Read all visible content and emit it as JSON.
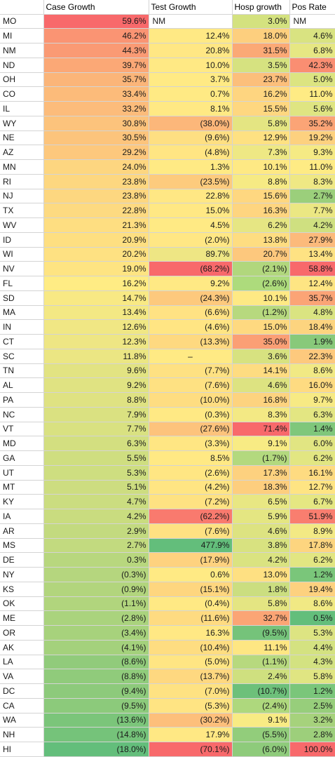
{
  "headers": [
    "",
    "Case Growth",
    "Test Growth",
    "Hosp growth",
    "Pos Rate"
  ],
  "rows": [
    {
      "state": "MO",
      "case": "59.6%",
      "cc": "#f8696b",
      "test": "NM",
      "tc": "#ffffff",
      "hosp": "3.0%",
      "hc": "#d4e27f",
      "pos": "NM",
      "pc": "#ffffff"
    },
    {
      "state": "MI",
      "case": "46.2%",
      "cc": "#fa9473",
      "test": "12.4%",
      "tc": "#ffe984",
      "hosp": "18.0%",
      "hc": "#fdcf7e",
      "pos": "4.6%",
      "pc": "#d9e381"
    },
    {
      "state": "NM",
      "case": "44.3%",
      "cc": "#fa9a74",
      "test": "20.8%",
      "tc": "#ffe784",
      "hosp": "31.5%",
      "hc": "#fba976",
      "pos": "6.8%",
      "pc": "#e6e783"
    },
    {
      "state": "ND",
      "case": "39.7%",
      "cc": "#fba876",
      "test": "10.0%",
      "tc": "#ffe984",
      "hosp": "3.5%",
      "hc": "#d6e280",
      "pos": "42.3%",
      "pc": "#fa8e72"
    },
    {
      "state": "OH",
      "case": "35.7%",
      "cc": "#fbb579",
      "test": "3.7%",
      "tc": "#ffea84",
      "hosp": "23.7%",
      "hc": "#fcbf7b",
      "pos": "5.0%",
      "pc": "#dce481"
    },
    {
      "state": "CO",
      "case": "33.4%",
      "cc": "#fcbb7a",
      "test": "0.7%",
      "tc": "#ffea84",
      "hosp": "16.2%",
      "hc": "#fed580",
      "pos": "11.0%",
      "pc": "#feeb84"
    },
    {
      "state": "IL",
      "case": "33.2%",
      "cc": "#fcbc7b",
      "test": "8.1%",
      "tc": "#ffe984",
      "hosp": "15.5%",
      "hc": "#fed780",
      "pos": "5.6%",
      "pc": "#dfe582"
    },
    {
      "state": "WY",
      "case": "30.8%",
      "cc": "#fcc37c",
      "test": "(38.0%)",
      "tc": "#fcb77a",
      "hosp": "5.8%",
      "hc": "#e4e582",
      "pos": "35.2%",
      "pc": "#fba476"
    },
    {
      "state": "NE",
      "case": "30.5%",
      "cc": "#fcc47c",
      "test": "(9.6%)",
      "tc": "#fedf82",
      "hosp": "12.9%",
      "hc": "#fee182",
      "pos": "19.2%",
      "pc": "#fdd17f"
    },
    {
      "state": "AZ",
      "case": "29.2%",
      "cc": "#fdc87d",
      "test": "(4.8%)",
      "tc": "#ffe583",
      "hosp": "7.3%",
      "hc": "#eee884",
      "pos": "9.3%",
      "pc": "#f5ea84"
    },
    {
      "state": "MN",
      "case": "24.0%",
      "cc": "#fdd680",
      "test": "1.3%",
      "tc": "#ffea84",
      "hosp": "10.1%",
      "hc": "#fee984",
      "pos": "11.0%",
      "pc": "#feeb84"
    },
    {
      "state": "RI",
      "case": "23.8%",
      "cc": "#fdd780",
      "test": "(23.5%)",
      "tc": "#fdcb7d",
      "hosp": "8.8%",
      "hc": "#f6ea84",
      "pos": "8.3%",
      "pc": "#efe884"
    },
    {
      "state": "NJ",
      "case": "23.8%",
      "cc": "#fdd780",
      "test": "22.8%",
      "tc": "#ffe784",
      "hosp": "15.6%",
      "hc": "#fed780",
      "pos": "2.7%",
      "pc": "#9bcf7b"
    },
    {
      "state": "TX",
      "case": "22.8%",
      "cc": "#fdda81",
      "test": "15.0%",
      "tc": "#ffe884",
      "hosp": "16.3%",
      "hc": "#fed580",
      "pos": "7.7%",
      "pc": "#ebe783"
    },
    {
      "state": "WV",
      "case": "21.3%",
      "cc": "#fede81",
      "test": "4.5%",
      "tc": "#ffea84",
      "hosp": "6.2%",
      "hc": "#e6e683",
      "pos": "4.2%",
      "pc": "#cfe080"
    },
    {
      "state": "ID",
      "case": "20.9%",
      "cc": "#fedf81",
      "test": "(2.0%)",
      "tc": "#ffe784",
      "hosp": "13.8%",
      "hc": "#fedd81",
      "pos": "27.9%",
      "pc": "#fcba7b"
    },
    {
      "state": "WI",
      "case": "20.2%",
      "cc": "#fee182",
      "test": "89.7%",
      "tc": "#eee684",
      "hosp": "20.7%",
      "hc": "#fdc87d",
      "pos": "13.4%",
      "pc": "#fee283"
    },
    {
      "state": "NV",
      "case": "19.0%",
      "cc": "#fee482",
      "test": "(68.2%)",
      "tc": "#f8696b",
      "hosp": "(2.1%)",
      "hc": "#b1d77d",
      "pos": "58.8%",
      "pc": "#f8696b"
    },
    {
      "state": "FL",
      "case": "16.2%",
      "cc": "#ffec84",
      "test": "9.2%",
      "tc": "#ffe984",
      "hosp": "(2.6%)",
      "hc": "#addb7c",
      "pos": "12.4%",
      "pc": "#fee583"
    },
    {
      "state": "SD",
      "case": "14.7%",
      "cc": "#f8e984",
      "test": "(24.3%)",
      "tc": "#fdc97d",
      "hosp": "10.1%",
      "hc": "#fee984",
      "pos": "35.7%",
      "pc": "#fba476"
    },
    {
      "state": "MA",
      "case": "13.4%",
      "cc": "#f3e884",
      "test": "(6.6%)",
      "tc": "#ffe283",
      "hosp": "(1.2%)",
      "hc": "#b7d97e",
      "pos": "4.8%",
      "pc": "#dae481"
    },
    {
      "state": "IN",
      "case": "12.6%",
      "cc": "#f0e784",
      "test": "(4.6%)",
      "tc": "#ffe583",
      "hosp": "15.0%",
      "hc": "#fed980",
      "pos": "18.4%",
      "pc": "#fdd47f"
    },
    {
      "state": "CT",
      "case": "12.3%",
      "cc": "#eee684",
      "test": "(13.3%)",
      "tc": "#fed980",
      "hosp": "35.0%",
      "hc": "#fb9f75",
      "pos": "1.9%",
      "pc": "#88c97a"
    },
    {
      "state": "SC",
      "case": "11.8%",
      "cc": "#ebe683",
      "test": "–",
      "tc": "#ffea84",
      "hosp": "3.6%",
      "hc": "#d7e280",
      "pos": "22.3%",
      "pc": "#fdc97d"
    },
    {
      "state": "TN",
      "case": "9.6%",
      "cc": "#e2e382",
      "test": "(7.7%)",
      "tc": "#fee182",
      "hosp": "14.1%",
      "hc": "#fedc81",
      "pos": "8.6%",
      "pc": "#f1e984"
    },
    {
      "state": "AL",
      "case": "9.2%",
      "cc": "#e0e382",
      "test": "(7.6%)",
      "tc": "#fee182",
      "hosp": "4.6%",
      "hc": "#dde381",
      "pos": "16.0%",
      "pc": "#fedb81"
    },
    {
      "state": "PA",
      "case": "8.8%",
      "cc": "#dfe282",
      "test": "(10.0%)",
      "tc": "#fedd81",
      "hosp": "16.8%",
      "hc": "#fdd37f",
      "pos": "9.7%",
      "pc": "#f7ea84"
    },
    {
      "state": "NC",
      "case": "7.9%",
      "cc": "#dae181",
      "test": "(0.3%)",
      "tc": "#ffe984",
      "hosp": "8.3%",
      "hc": "#f3e984",
      "pos": "6.3%",
      "pc": "#e3e682"
    },
    {
      "state": "VT",
      "case": "7.7%",
      "cc": "#d9e181",
      "test": "(27.6%)",
      "tc": "#fdc37c",
      "hosp": "71.4%",
      "hc": "#f8696b",
      "pos": "1.4%",
      "pc": "#7fc77b"
    },
    {
      "state": "MD",
      "case": "6.3%",
      "cc": "#d3df80",
      "test": "(3.3%)",
      "tc": "#ffe683",
      "hosp": "9.1%",
      "hc": "#f8eb84",
      "pos": "6.0%",
      "pc": "#e1e582"
    },
    {
      "state": "GA",
      "case": "5.5%",
      "cc": "#cfde80",
      "test": "8.5%",
      "tc": "#ffe984",
      "hosp": "(1.7%)",
      "hc": "#b3d97e",
      "pos": "6.2%",
      "pc": "#e2e682"
    },
    {
      "state": "UT",
      "case": "5.3%",
      "cc": "#cede80",
      "test": "(2.6%)",
      "tc": "#ffe683",
      "hosp": "17.3%",
      "hc": "#fdd17f",
      "pos": "16.1%",
      "pc": "#fedb81"
    },
    {
      "state": "MT",
      "case": "5.1%",
      "cc": "#cddd80",
      "test": "(4.2%)",
      "tc": "#ffe583",
      "hosp": "18.3%",
      "hc": "#fdce7e",
      "pos": "12.7%",
      "pc": "#fee483"
    },
    {
      "state": "KY",
      "case": "4.7%",
      "cc": "#cbdd80",
      "test": "(7.2%)",
      "tc": "#fee282",
      "hosp": "6.5%",
      "hc": "#e8e783",
      "pos": "6.7%",
      "pc": "#e5e782"
    },
    {
      "state": "IA",
      "case": "4.2%",
      "cc": "#c9dc7f",
      "test": "(62.2%)",
      "tc": "#f97a6e",
      "hosp": "5.9%",
      "hc": "#e4e682",
      "pos": "51.9%",
      "pc": "#f97e6f"
    },
    {
      "state": "AR",
      "case": "2.9%",
      "cc": "#c3da7f",
      "test": "(7.6%)",
      "tc": "#fee182",
      "hosp": "4.6%",
      "hc": "#dde381",
      "pos": "8.9%",
      "pc": "#f3e984"
    },
    {
      "state": "MS",
      "case": "2.7%",
      "cc": "#c2da7f",
      "test": "477.9%",
      "tc": "#63be7b",
      "hosp": "3.8%",
      "hc": "#d8e280",
      "pos": "17.8%",
      "pc": "#fdd57f"
    },
    {
      "state": "DE",
      "case": "0.3%",
      "cc": "#b8d77e",
      "test": "(17.9%)",
      "tc": "#fed27f",
      "hosp": "4.2%",
      "hc": "#dae381",
      "pos": "6.2%",
      "pc": "#e2e682"
    },
    {
      "state": "NY",
      "case": "(0.3%)",
      "cc": "#b5d67e",
      "test": "0.6%",
      "tc": "#ffea84",
      "hosp": "13.0%",
      "hc": "#fee082",
      "pos": "1.2%",
      "pc": "#7ac67a"
    },
    {
      "state": "KS",
      "case": "(0.9%)",
      "cc": "#b2d57d",
      "test": "(15.1%)",
      "tc": "#fed67f",
      "hosp": "1.8%",
      "hc": "#cbde80",
      "pos": "19.4%",
      "pc": "#fdd17f"
    },
    {
      "state": "OK",
      "case": "(1.1%)",
      "cc": "#b1d57d",
      "test": "(0.4%)",
      "tc": "#ffe984",
      "hosp": "5.8%",
      "hc": "#e4e582",
      "pos": "8.6%",
      "pc": "#f1e984"
    },
    {
      "state": "ME",
      "case": "(2.8%)",
      "cc": "#aad37d",
      "test": "(11.6%)",
      "tc": "#fedb81",
      "hosp": "32.7%",
      "hc": "#fba575",
      "pos": "0.5%",
      "pc": "#63be7b"
    },
    {
      "state": "OR",
      "case": "(3.4%)",
      "cc": "#a7d27c",
      "test": "16.3%",
      "tc": "#ffe884",
      "hosp": "(9.5%)",
      "hc": "#75c37a",
      "pos": "5.3%",
      "pc": "#dde482"
    },
    {
      "state": "AK",
      "case": "(4.1%)",
      "cc": "#a4d17c",
      "test": "(10.4%)",
      "tc": "#fedd81",
      "hosp": "11.1%",
      "hc": "#fee683",
      "pos": "4.4%",
      "pc": "#d4e281"
    },
    {
      "state": "LA",
      "case": "(8.6%)",
      "cc": "#91cb7b",
      "test": "(5.0%)",
      "tc": "#ffe583",
      "hosp": "(1.1%)",
      "hc": "#b7d97e",
      "pos": "4.3%",
      "pc": "#d3e281"
    },
    {
      "state": "VA",
      "case": "(8.8%)",
      "cc": "#90cb7b",
      "test": "(13.7%)",
      "tc": "#fed880",
      "hosp": "2.4%",
      "hc": "#cfe07f",
      "pos": "5.8%",
      "pc": "#e0e582"
    },
    {
      "state": "DC",
      "case": "(9.4%)",
      "cc": "#8dca7b",
      "test": "(7.0%)",
      "tc": "#fee282",
      "hosp": "(10.7%)",
      "hc": "#6dc07a",
      "pos": "1.2%",
      "pc": "#7ac67a"
    },
    {
      "state": "CA",
      "case": "(9.5%)",
      "cc": "#8cca7b",
      "test": "(5.3%)",
      "tc": "#ffe483",
      "hosp": "(2.4%)",
      "hc": "#aed87d",
      "pos": "2.5%",
      "pc": "#97ce7b"
    },
    {
      "state": "WA",
      "case": "(13.6%)",
      "cc": "#7bc57a",
      "test": "(30.2%)",
      "tc": "#fdbf7b",
      "hosp": "9.1%",
      "hc": "#f8eb84",
      "pos": "3.2%",
      "pc": "#a6d27c"
    },
    {
      "state": "NH",
      "case": "(14.8%)",
      "cc": "#75c37a",
      "test": "17.9%",
      "tc": "#ffe884",
      "hosp": "(5.5%)",
      "hc": "#92cd7b",
      "pos": "2.8%",
      "pc": "#9dcf7b"
    },
    {
      "state": "HI",
      "case": "(18.0%)",
      "cc": "#63be7b",
      "test": "(70.1%)",
      "tc": "#f8696b",
      "hosp": "(6.0%)",
      "hc": "#8ecb7b",
      "pos": "100.0%",
      "pc": "#f8696b"
    }
  ]
}
